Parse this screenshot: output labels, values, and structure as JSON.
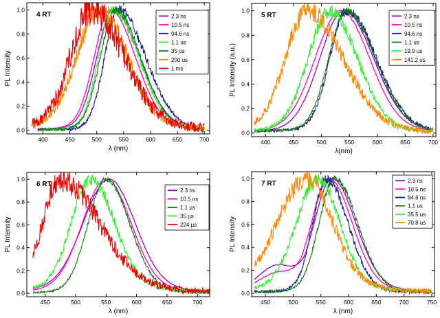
{
  "chart_data": [
    {
      "type": "line",
      "panel_label": "4 RT",
      "xlabel": "λ (nm)",
      "ylabel": "PL Intensity",
      "xlim": [
        370,
        710
      ],
      "ylim": [
        -0.03,
        1.06
      ],
      "xticks": [
        400,
        450,
        500,
        550,
        600,
        650,
        700
      ],
      "yticks": [
        0.0,
        0.2,
        0.4,
        0.6,
        0.8,
        1.0
      ],
      "ytick_labels": [
        "0.0",
        "0.2",
        "0.4",
        "0.6",
        "0.8",
        "1.0"
      ],
      "x_start": 380,
      "x_end": 700,
      "series": [
        {
          "name": "2.3 ns",
          "color": "#9900cc",
          "peak": 530,
          "width_left": 42,
          "width_right": 70,
          "noise": 0.004,
          "baseline": 0.02,
          "start": 390
        },
        {
          "name": "10.5 ns",
          "color": "#ff00cc",
          "peak": 525,
          "width_left": 42,
          "width_right": 66,
          "noise": 0.004,
          "baseline": 0.02,
          "start": 390
        },
        {
          "name": "94.6 ns",
          "color": "#1a1a8c",
          "peak": 540,
          "width_left": 36,
          "width_right": 72,
          "noise": 0.03,
          "baseline": 0.01,
          "start": 390
        },
        {
          "name": "1.1 us",
          "color": "#33ee33",
          "peak": 530,
          "width_left": 38,
          "width_right": 68,
          "noise": 0.03,
          "baseline": 0.01,
          "start": 390
        },
        {
          "name": "35 us",
          "color": "#117711",
          "peak": 535,
          "width_left": 40,
          "width_right": 66,
          "noise": 0.02,
          "baseline": 0.01,
          "start": 390
        },
        {
          "name": "200 us",
          "color": "#ff8800",
          "peak": 505,
          "width_left": 60,
          "width_right": 72,
          "noise": 0.07,
          "baseline": 0.05,
          "start": 380
        },
        {
          "name": "1 ms",
          "color": "#ee0000",
          "peak": 490,
          "width_left": 55,
          "width_right": 85,
          "noise": 0.1,
          "baseline": 0.05,
          "start": 380
        }
      ]
    },
    {
      "type": "line",
      "panel_label": "5 RT",
      "xlabel": "λ(nm)",
      "ylabel": "PL Intensity (a.u.)",
      "xlim": [
        375,
        705
      ],
      "ylim": [
        -0.03,
        1.06
      ],
      "xticks": [
        400,
        450,
        500,
        550,
        600,
        650,
        700
      ],
      "yticks": [
        0.0,
        0.2,
        0.4,
        0.6,
        0.8,
        1.0
      ],
      "ytick_labels": [
        "0.0",
        "0.2",
        "0.4",
        "0.6",
        "0.8",
        "1.0"
      ],
      "x_start": 380,
      "x_end": 700,
      "series": [
        {
          "name": "2.3 ns",
          "color": "#9900cc",
          "peak": 540,
          "width_left": 60,
          "width_right": 75,
          "noise": 0.004,
          "baseline": 0.03,
          "start": 380
        },
        {
          "name": "10.5 ns",
          "color": "#ff00cc",
          "peak": 535,
          "width_left": 65,
          "width_right": 72,
          "noise": 0.004,
          "baseline": 0.03,
          "start": 380
        },
        {
          "name": "94.6 ns",
          "color": "#1a1a8c",
          "peak": 545,
          "width_left": 42,
          "width_right": 75,
          "noise": 0.03,
          "baseline": 0.03,
          "start": 380
        },
        {
          "name": "1.1 us",
          "color": "#117711",
          "peak": 545,
          "width_left": 45,
          "width_right": 72,
          "noise": 0.02,
          "baseline": 0.03,
          "start": 380
        },
        {
          "name": "19.9 us",
          "color": "#33ee33",
          "peak": 515,
          "width_left": 55,
          "width_right": 70,
          "noise": 0.04,
          "baseline": 0.03,
          "start": 380
        },
        {
          "name": "141.2 us",
          "color": "#ff8800",
          "peak": 475,
          "width_left": 55,
          "width_right": 90,
          "noise": 0.06,
          "baseline": 0.04,
          "start": 380
        }
      ]
    },
    {
      "type": "line",
      "panel_label": "6 RT",
      "xlabel": "λ (nm)",
      "ylabel": "PL Intensity",
      "xlim": [
        420,
        720
      ],
      "ylim": [
        -0.03,
        1.06
      ],
      "xticks": [
        450,
        500,
        550,
        600,
        650,
        700
      ],
      "yticks": [
        0.0,
        0.2,
        0.4,
        0.6,
        0.8,
        1.0
      ],
      "ytick_labels": [
        "0.0",
        "0.2",
        "0.4",
        "0.6",
        "0.8",
        "1.0"
      ],
      "x_start": 430,
      "x_end": 720,
      "series": [
        {
          "name": "2.3 ns",
          "color": "#9900cc",
          "peak": 555,
          "width_left": 60,
          "width_right": 60,
          "noise": 0.004,
          "baseline": 0.04,
          "start": 430
        },
        {
          "name": "10.5 ns",
          "color": "#ff00cc",
          "peak": 550,
          "width_left": 55,
          "width_right": 58,
          "noise": 0.004,
          "baseline": 0.03,
          "start": 430
        },
        {
          "name": "1.1 µs",
          "color": "#117711",
          "peak": 550,
          "width_left": 42,
          "width_right": 55,
          "noise": 0.02,
          "baseline": 0.01,
          "start": 430
        },
        {
          "name": "35 µs",
          "color": "#33ee33",
          "peak": 525,
          "width_left": 45,
          "width_right": 55,
          "noise": 0.04,
          "baseline": 0.05,
          "start": 430
        },
        {
          "name": "224 µs",
          "color": "#ee0000",
          "peak": 475,
          "width_left": 40,
          "width_right": 90,
          "noise": 0.08,
          "baseline": 0.06,
          "start": 430
        }
      ]
    },
    {
      "type": "line",
      "panel_label": "7 RT",
      "xlabel": "λ (nm)",
      "ylabel": "PL Intensity",
      "xlim": [
        425,
        755
      ],
      "ylim": [
        -0.03,
        1.06
      ],
      "xticks": [
        450,
        500,
        550,
        600,
        650,
        700,
        750
      ],
      "yticks": [
        0.0,
        0.2,
        0.4,
        0.6,
        0.8,
        1.0
      ],
      "ytick_labels": [
        "0.0",
        "0.2",
        "0.4",
        "0.6",
        "0.8",
        "1.0"
      ],
      "x_start": 430,
      "x_end": 750,
      "series": [
        {
          "name": "2.3 ns",
          "color": "#9900cc",
          "peak": 570,
          "width_left": 45,
          "width_right": 60,
          "noise": 0.004,
          "baseline": 0.04,
          "start": 430,
          "shoulder": 0.22
        },
        {
          "name": "10.5 ns",
          "color": "#ff00cc",
          "peak": 565,
          "width_left": 45,
          "width_right": 58,
          "noise": 0.004,
          "baseline": 0.04,
          "start": 430,
          "shoulder": 0.15
        },
        {
          "name": "94.6 ns",
          "color": "#1a1a8c",
          "peak": 560,
          "width_left": 35,
          "width_right": 55,
          "noise": 0.03,
          "baseline": 0.02,
          "start": 430
        },
        {
          "name": "1.1 us",
          "color": "#117711",
          "peak": 575,
          "width_left": 40,
          "width_right": 58,
          "noise": 0.02,
          "baseline": 0.02,
          "start": 430
        },
        {
          "name": "35.5 us",
          "color": "#33ee33",
          "peak": 545,
          "width_left": 55,
          "width_right": 55,
          "noise": 0.04,
          "baseline": 0.05,
          "start": 430
        },
        {
          "name": "70.8 us",
          "color": "#ff8800",
          "peak": 525,
          "width_left": 75,
          "width_right": 65,
          "noise": 0.06,
          "baseline": 0.06,
          "start": 430
        }
      ]
    }
  ]
}
